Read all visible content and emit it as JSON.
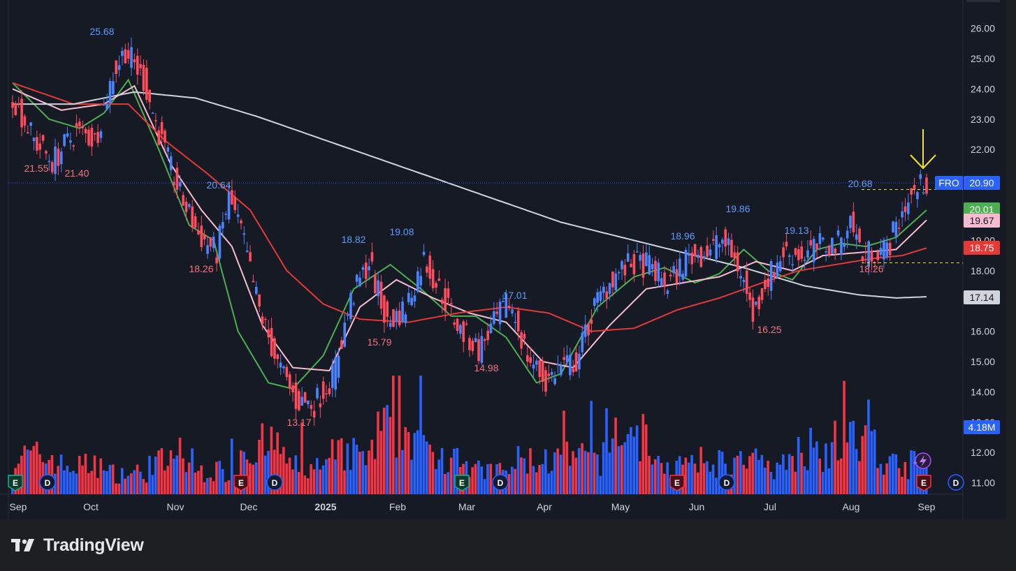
{
  "brand": {
    "name": "TradingView",
    "logo_icon": "tradingview-logo-icon"
  },
  "chart_data": {
    "type": "candlestick",
    "symbol": "FRO",
    "price_axis": {
      "ticks": [
        "11.00",
        "12.00",
        "13.00",
        "14.00",
        "15.00",
        "16.00",
        "17.00",
        "18.00",
        "19.00",
        "20.00",
        "21.00",
        "22.00",
        "23.00",
        "24.00",
        "25.00",
        "26.00"
      ],
      "range": [
        10.5,
        26.5
      ]
    },
    "time_axis": {
      "ticks": [
        "Sep",
        "Oct",
        "Nov",
        "Dec",
        "2025",
        "Feb",
        "Mar",
        "Apr",
        "May",
        "Jun",
        "Jul",
        "Aug",
        "Sep"
      ]
    },
    "last_price": {
      "symbol": "FRO",
      "value": "20.90"
    },
    "indicator_labels": [
      {
        "value": "20.01",
        "color": "#4caf50"
      },
      {
        "value": "19.67",
        "color": "#f8bbd0"
      },
      {
        "value": "18.75",
        "color": "#e53935"
      },
      {
        "value": "17.14",
        "color": "#d1d4dc"
      }
    ],
    "volume_label": "4.18M",
    "price_annotations": [
      {
        "text": "25.68",
        "kind": "high"
      },
      {
        "text": "21.55",
        "kind": "low"
      },
      {
        "text": "21.40",
        "kind": "low"
      },
      {
        "text": "20.64",
        "kind": "high"
      },
      {
        "text": "18.26",
        "kind": "low"
      },
      {
        "text": "13.17",
        "kind": "low"
      },
      {
        "text": "18.82",
        "kind": "high"
      },
      {
        "text": "19.08",
        "kind": "high"
      },
      {
        "text": "15.79",
        "kind": "low"
      },
      {
        "text": "14.98",
        "kind": "low"
      },
      {
        "text": "17.01",
        "kind": "high"
      },
      {
        "text": "18.96",
        "kind": "high"
      },
      {
        "text": "19.86",
        "kind": "high"
      },
      {
        "text": "16.25",
        "kind": "low"
      },
      {
        "text": "19.13",
        "kind": "high"
      },
      {
        "text": "20.68",
        "kind": "high"
      },
      {
        "text": "18.26",
        "kind": "low"
      }
    ],
    "event_markers": [
      "E",
      "D",
      "E",
      "D",
      "E",
      "D",
      "E",
      "D",
      "E",
      "D"
    ],
    "moving_averages": [
      {
        "color": "#4caf50",
        "points": [
          [
            0,
            24.2
          ],
          [
            12,
            23.0
          ],
          [
            22,
            22.7
          ],
          [
            30,
            23.2
          ],
          [
            38,
            24.3
          ],
          [
            48,
            22.0
          ],
          [
            58,
            19.5
          ],
          [
            66,
            19.0
          ],
          [
            74,
            16.0
          ],
          [
            84,
            14.3
          ],
          [
            92,
            14.1
          ],
          [
            102,
            15.2
          ],
          [
            112,
            17.4
          ],
          [
            124,
            18.2
          ],
          [
            134,
            17.4
          ],
          [
            144,
            16.5
          ],
          [
            152,
            16.5
          ],
          [
            162,
            15.8
          ],
          [
            172,
            14.3
          ],
          [
            180,
            14.6
          ],
          [
            192,
            16.8
          ],
          [
            204,
            17.8
          ],
          [
            214,
            18.1
          ],
          [
            224,
            17.6
          ],
          [
            232,
            17.9
          ],
          [
            240,
            18.7
          ],
          [
            248,
            18.0
          ],
          [
            256,
            17.7
          ],
          [
            264,
            18.7
          ],
          [
            272,
            18.9
          ],
          [
            280,
            18.8
          ],
          [
            290,
            19.1
          ],
          [
            300,
            20.0
          ]
        ]
      },
      {
        "color": "#f8bbd0",
        "points": [
          [
            0,
            24.0
          ],
          [
            16,
            23.3
          ],
          [
            30,
            23.5
          ],
          [
            40,
            24.1
          ],
          [
            52,
            21.5
          ],
          [
            62,
            20.0
          ],
          [
            72,
            18.8
          ],
          [
            82,
            16.2
          ],
          [
            92,
            14.8
          ],
          [
            104,
            14.7
          ],
          [
            114,
            16.8
          ],
          [
            126,
            17.7
          ],
          [
            138,
            17.1
          ],
          [
            150,
            16.6
          ],
          [
            162,
            16.3
          ],
          [
            174,
            15.0
          ],
          [
            184,
            14.8
          ],
          [
            196,
            16.2
          ],
          [
            208,
            17.4
          ],
          [
            220,
            17.6
          ],
          [
            232,
            17.8
          ],
          [
            244,
            18.3
          ],
          [
            256,
            18.0
          ],
          [
            266,
            18.5
          ],
          [
            278,
            18.6
          ],
          [
            290,
            18.7
          ],
          [
            300,
            19.67
          ]
        ]
      },
      {
        "color": "#e53935",
        "points": [
          [
            0,
            24.2
          ],
          [
            20,
            23.5
          ],
          [
            38,
            23.5
          ],
          [
            50,
            22.3
          ],
          [
            64,
            21.2
          ],
          [
            78,
            20.0
          ],
          [
            90,
            18.0
          ],
          [
            102,
            16.9
          ],
          [
            114,
            16.4
          ],
          [
            130,
            16.3
          ],
          [
            146,
            16.6
          ],
          [
            162,
            16.8
          ],
          [
            176,
            16.6
          ],
          [
            190,
            16.0
          ],
          [
            204,
            16.1
          ],
          [
            218,
            16.7
          ],
          [
            232,
            17.1
          ],
          [
            246,
            17.6
          ],
          [
            258,
            18.0
          ],
          [
            270,
            18.2
          ],
          [
            282,
            18.4
          ],
          [
            292,
            18.5
          ],
          [
            300,
            18.75
          ]
        ]
      },
      {
        "color": "#d1d4dc",
        "points": [
          [
            0,
            23.5
          ],
          [
            20,
            23.5
          ],
          [
            40,
            23.9
          ],
          [
            60,
            23.7
          ],
          [
            80,
            23.1
          ],
          [
            100,
            22.4
          ],
          [
            120,
            21.7
          ],
          [
            140,
            21.0
          ],
          [
            160,
            20.3
          ],
          [
            180,
            19.6
          ],
          [
            200,
            19.1
          ],
          [
            220,
            18.6
          ],
          [
            240,
            18.1
          ],
          [
            260,
            17.5
          ],
          [
            278,
            17.2
          ],
          [
            290,
            17.1
          ],
          [
            300,
            17.14
          ]
        ]
      }
    ],
    "trend_anchors": [
      [
        0,
        24.0
      ],
      [
        8,
        22.3
      ],
      [
        14,
        21.6
      ],
      [
        22,
        22.6
      ],
      [
        28,
        22.3
      ],
      [
        34,
        24.5
      ],
      [
        38,
        25.3
      ],
      [
        44,
        24.3
      ],
      [
        50,
        22.2
      ],
      [
        56,
        20.5
      ],
      [
        62,
        19.2
      ],
      [
        68,
        18.6
      ],
      [
        72,
        20.4
      ],
      [
        76,
        19.3
      ],
      [
        82,
        16.7
      ],
      [
        88,
        14.9
      ],
      [
        94,
        13.7
      ],
      [
        100,
        13.6
      ],
      [
        106,
        14.5
      ],
      [
        112,
        17.0
      ],
      [
        118,
        18.3
      ],
      [
        124,
        16.2
      ],
      [
        130,
        16.8
      ],
      [
        136,
        18.4
      ],
      [
        142,
        17.2
      ],
      [
        148,
        16.0
      ],
      [
        154,
        15.4
      ],
      [
        160,
        16.4
      ],
      [
        164,
        17.0
      ],
      [
        170,
        15.2
      ],
      [
        176,
        14.3
      ],
      [
        180,
        14.8
      ],
      [
        186,
        15.0
      ],
      [
        192,
        16.8
      ],
      [
        198,
        17.8
      ],
      [
        204,
        18.2
      ],
      [
        210,
        18.2
      ],
      [
        216,
        17.5
      ],
      [
        222,
        18.4
      ],
      [
        228,
        18.6
      ],
      [
        234,
        19.0
      ],
      [
        240,
        18.0
      ],
      [
        244,
        16.5
      ],
      [
        248,
        17.6
      ],
      [
        254,
        18.6
      ],
      [
        260,
        18.5
      ],
      [
        266,
        18.8
      ],
      [
        272,
        18.9
      ],
      [
        276,
        19.7
      ],
      [
        280,
        18.5
      ],
      [
        284,
        18.7
      ],
      [
        288,
        18.7
      ],
      [
        294,
        20.2
      ],
      [
        300,
        20.9
      ]
    ],
    "volume_profile": [
      2.1,
      1.6,
      1.2,
      1.8,
      1.3,
      2.7,
      1.5,
      2.2,
      3.6,
      2.3,
      1.3,
      1.9,
      2.0,
      3.4,
      1.5,
      1.8,
      1.6,
      2.5,
      2.9,
      1.7
    ]
  }
}
